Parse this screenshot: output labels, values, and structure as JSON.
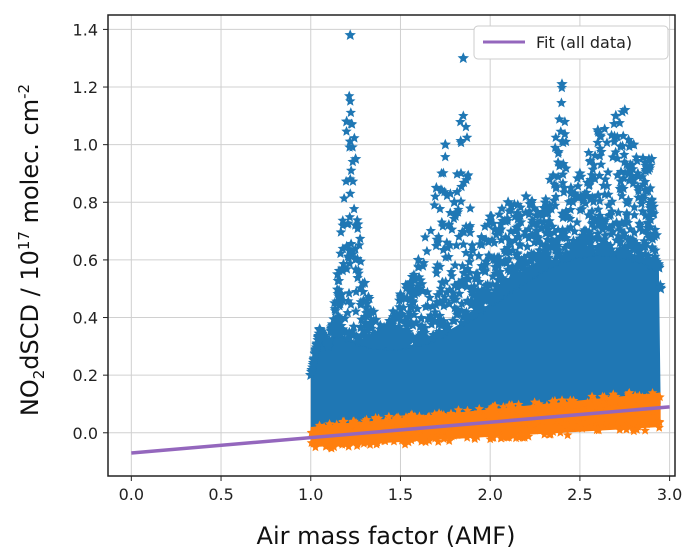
{
  "chart_data": {
    "type": "scatter",
    "title": "",
    "xlabel": "Air mass factor (AMF)",
    "ylabel_parts": {
      "a": "NO",
      "b": "2",
      "c": "dSCD / 10",
      "d": "17",
      "e": " molec. cm",
      "f": "-2"
    },
    "xlim": [
      -0.13,
      3.03
    ],
    "ylim": [
      -0.15,
      1.45
    ],
    "xticks": [
      "0.0",
      "0.5",
      "1.0",
      "1.5",
      "2.0",
      "2.5",
      "3.0"
    ],
    "xtick_values": [
      0.0,
      0.5,
      1.0,
      1.5,
      2.0,
      2.5,
      3.0
    ],
    "yticks": [
      "0.0",
      "0.2",
      "0.4",
      "0.6",
      "0.8",
      "1.0",
      "1.2",
      "1.4"
    ],
    "ytick_values": [
      0.0,
      0.2,
      0.4,
      0.6,
      0.8,
      1.0,
      1.2,
      1.4
    ],
    "grid": true,
    "legend_position": "top-right",
    "legend": [
      {
        "label": "Fit (all data)",
        "color": "#9467bd"
      }
    ],
    "series": [
      {
        "marker": "star",
        "color": "#1f77b4",
        "x_range": [
          1.0,
          2.95
        ],
        "approx_points": [
          [
            1.0,
            0.2
          ],
          [
            1.05,
            0.36
          ],
          [
            1.1,
            0.3
          ],
          [
            1.15,
            0.55
          ],
          [
            1.2,
            1.08
          ],
          [
            1.22,
            1.38
          ],
          [
            1.25,
            0.95
          ],
          [
            1.3,
            0.52
          ],
          [
            1.35,
            0.42
          ],
          [
            1.4,
            0.36
          ],
          [
            1.5,
            0.48
          ],
          [
            1.6,
            0.6
          ],
          [
            1.7,
            0.85
          ],
          [
            1.75,
            1.0
          ],
          [
            1.8,
            0.8
          ],
          [
            1.85,
            1.3
          ],
          [
            1.9,
            0.65
          ],
          [
            2.0,
            0.75
          ],
          [
            2.1,
            0.8
          ],
          [
            2.2,
            0.82
          ],
          [
            2.3,
            0.78
          ],
          [
            2.4,
            1.21
          ],
          [
            2.45,
            0.85
          ],
          [
            2.5,
            0.9
          ],
          [
            2.6,
            1.05
          ],
          [
            2.7,
            1.1
          ],
          [
            2.75,
            1.12
          ],
          [
            2.8,
            1.0
          ],
          [
            2.9,
            0.95
          ],
          [
            2.95,
            0.5
          ]
        ]
      },
      {
        "marker": "star",
        "color": "#ff7f0e",
        "x_range": [
          1.0,
          2.95
        ],
        "band_lower": [
          [
            1.0,
            -0.05
          ],
          [
            2.95,
            0.02
          ]
        ],
        "band_upper": [
          [
            1.0,
            0.02
          ],
          [
            2.95,
            0.14
          ]
        ]
      },
      {
        "type": "line",
        "name": "Fit (all data)",
        "color": "#9467bd",
        "x": [
          0.0,
          3.0
        ],
        "y": [
          -0.07,
          0.09
        ]
      }
    ]
  }
}
